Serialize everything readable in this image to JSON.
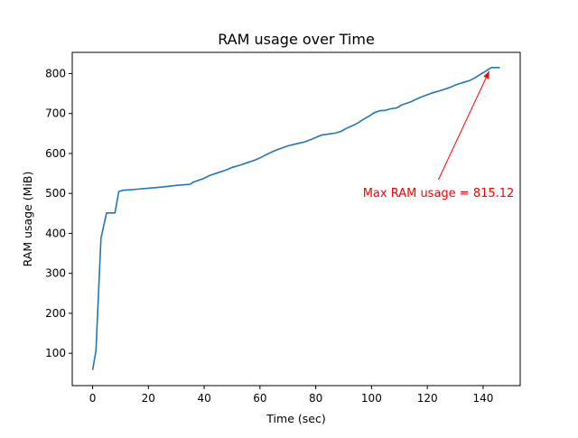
{
  "chart_data": {
    "type": "line",
    "title": "RAM usage over Time",
    "xlabel": "Time (sec)",
    "ylabel": "RAM usage (MiB)",
    "xlim": [
      -7.3,
      153.3
    ],
    "ylim": [
      19,
      853
    ],
    "xticks": [
      0,
      20,
      40,
      60,
      80,
      100,
      120,
      140
    ],
    "yticks": [
      100,
      200,
      300,
      400,
      500,
      600,
      700,
      800
    ],
    "grid": false,
    "series": [
      {
        "color": "#1f77b4",
        "x": [
          0,
          1.2,
          3,
          5,
          8,
          9.4,
          11,
          15,
          20,
          25,
          30,
          35,
          36,
          38,
          40,
          42,
          45,
          48,
          50,
          53,
          55,
          58,
          60,
          62,
          64,
          66,
          68,
          70,
          73,
          76,
          78,
          80,
          82,
          84,
          87,
          89,
          91,
          93,
          95,
          97,
          99,
          101,
          103,
          105,
          107,
          109,
          111,
          114,
          117,
          120,
          122,
          125,
          128,
          130,
          133,
          135,
          137,
          139,
          141,
          142,
          143,
          146
        ],
        "y": [
          58,
          106,
          388,
          451,
          451,
          505,
          508,
          510,
          513,
          516,
          520,
          523,
          528,
          533,
          538,
          545,
          552,
          559,
          565,
          571,
          576,
          583,
          589,
          596,
          603,
          609,
          614,
          619,
          624,
          629,
          634,
          640,
          646,
          648,
          651,
          655,
          663,
          669,
          676,
          685,
          693,
          702,
          707,
          708,
          712,
          714,
          722,
          729,
          739,
          747,
          752,
          758,
          765,
          771,
          778,
          782,
          789,
          798,
          806,
          811,
          815,
          815
        ]
      }
    ],
    "annotation": {
      "text": "Max RAM usage = 815.12",
      "color": "#ff0000",
      "point": [
        142.5,
        815.12
      ],
      "text_anchor": [
        124,
        503
      ]
    }
  }
}
